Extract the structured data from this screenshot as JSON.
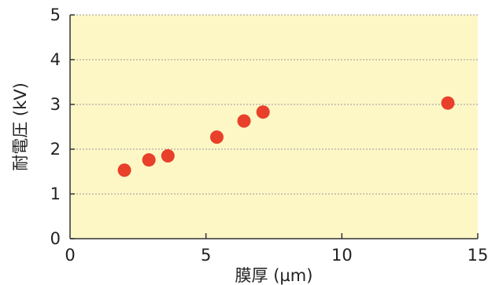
{
  "chart_data": {
    "type": "scatter",
    "xlabel": "膜厚 (µm)",
    "ylabel": "耐電圧 (kV)",
    "xlim": [
      0,
      15
    ],
    "ylim": [
      0,
      5
    ],
    "x_ticks": [
      "0",
      "5",
      "10",
      "15"
    ],
    "y_ticks": [
      "0",
      "1",
      "2",
      "3",
      "4",
      "5"
    ],
    "grid": "horizontal dotted",
    "series": [
      {
        "points": [
          {
            "x": 2.0,
            "y": 1.53
          },
          {
            "x": 2.9,
            "y": 1.76
          },
          {
            "x": 3.6,
            "y": 1.85
          },
          {
            "x": 5.4,
            "y": 2.27
          },
          {
            "x": 6.4,
            "y": 2.63
          },
          {
            "x": 7.1,
            "y": 2.83
          },
          {
            "x": 13.9,
            "y": 3.03
          }
        ]
      }
    ]
  },
  "colors": {
    "plot_background": "#fdf7c6",
    "marker": "#e8402a",
    "axis": "#333333",
    "grid": "#999999"
  }
}
